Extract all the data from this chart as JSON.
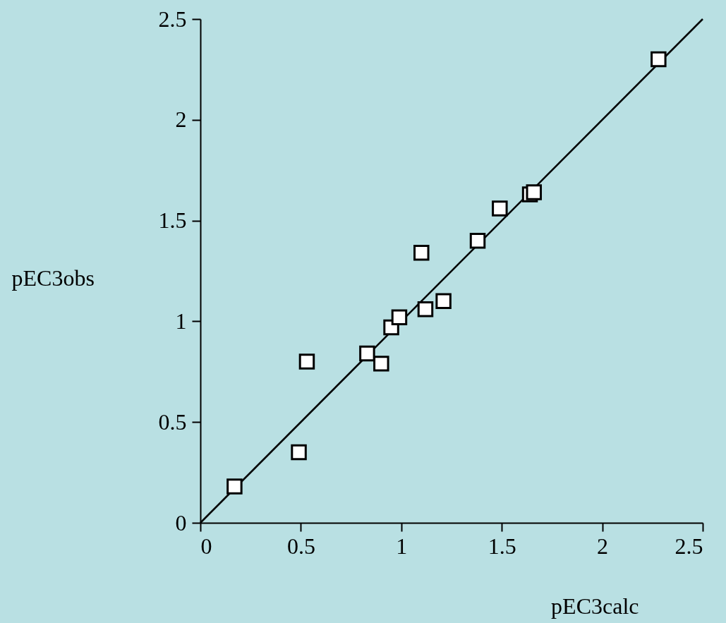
{
  "chart_data": {
    "type": "scatter",
    "xlabel": "pEC3calc",
    "ylabel": "pEC3obs",
    "marker": "square",
    "grid": false,
    "xlim": [
      0,
      2.5
    ],
    "ylim": [
      0,
      2.5
    ],
    "xticks": [
      0,
      0.5,
      1,
      1.5,
      2,
      2.5
    ],
    "yticks": [
      0,
      0.5,
      1,
      1.5,
      2,
      2.5
    ],
    "series": [
      {
        "color": "#000000",
        "x": [
          0.17,
          0.49,
          0.53,
          0.83,
          0.9,
          0.95,
          0.99,
          1.1,
          1.12,
          1.21,
          1.38,
          1.49,
          1.64,
          1.66,
          2.28
        ],
        "values": [
          0.18,
          0.35,
          0.8,
          0.84,
          0.79,
          0.97,
          1.02,
          1.34,
          1.06,
          1.1,
          1.4,
          1.56,
          1.63,
          1.64,
          2.3
        ]
      },
      {
        "type": "line",
        "color": "#000000",
        "line_style": "solid",
        "marker": "none",
        "x": [
          0,
          2.5
        ],
        "values": [
          0,
          2.5
        ]
      }
    ]
  }
}
